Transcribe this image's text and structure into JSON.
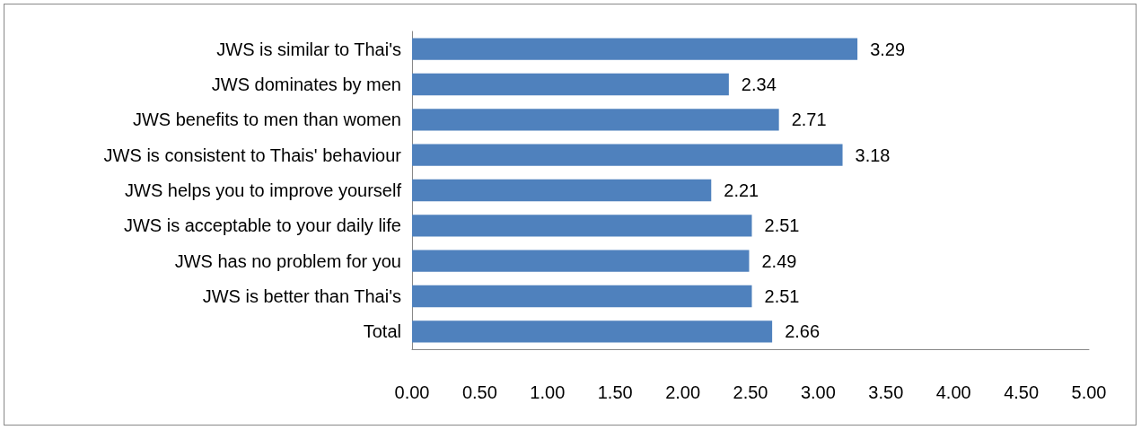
{
  "chart_data": {
    "type": "bar",
    "orientation": "horizontal",
    "categories": [
      "JWS is similar to Thai's",
      "JWS dominates by men",
      "JWS benefits to men than women",
      "JWS is consistent to Thais' behaviour",
      "JWS helps you to improve yourself",
      "JWS is acceptable to your daily life",
      "JWS has no problem for you",
      "JWS is better than Thai's",
      "Total"
    ],
    "values": [
      3.29,
      2.34,
      2.71,
      3.18,
      2.21,
      2.51,
      2.49,
      2.51,
      2.66
    ],
    "color": "#4f81bd",
    "xlim": [
      0,
      5
    ],
    "xticks": [
      {
        "value": 0,
        "label": "0.00"
      },
      {
        "value": 0.5,
        "label": "0.50"
      },
      {
        "value": 1,
        "label": "1.00"
      },
      {
        "value": 1.5,
        "label": "1.50"
      },
      {
        "value": 2,
        "label": "2.00"
      },
      {
        "value": 2.5,
        "label": "2.50"
      },
      {
        "value": 3,
        "label": "3.00"
      },
      {
        "value": 3.5,
        "label": "3.50"
      },
      {
        "value": 4,
        "label": "4.00"
      },
      {
        "value": 4.5,
        "label": "4.50"
      },
      {
        "value": 5,
        "label": "5.00"
      }
    ],
    "data_labels": true,
    "grid": false
  }
}
